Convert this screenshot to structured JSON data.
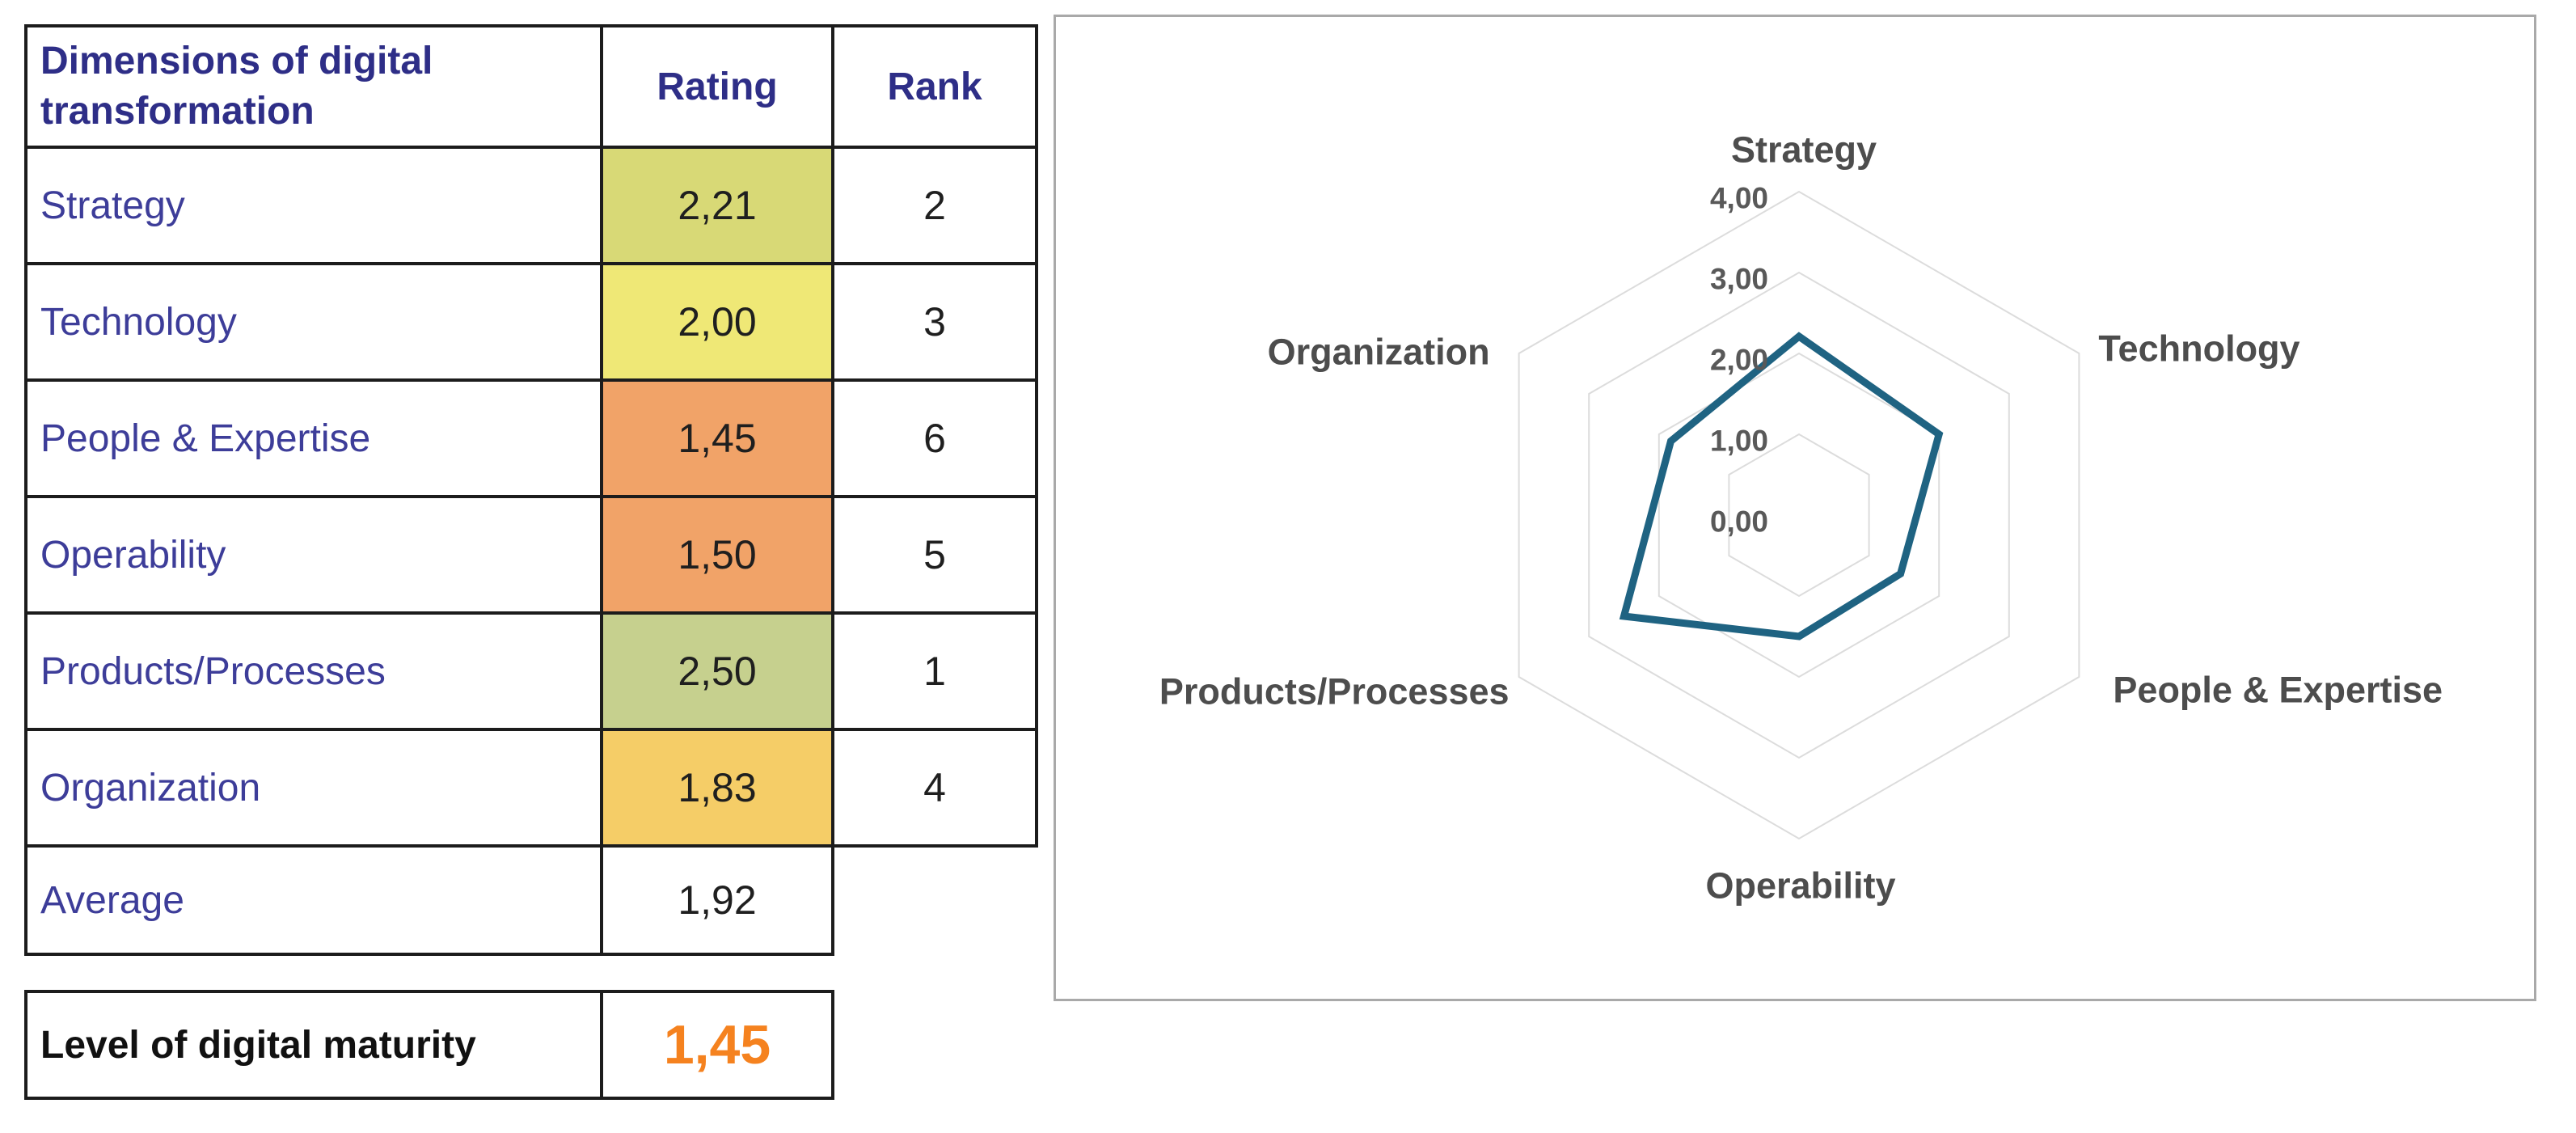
{
  "table": {
    "header": {
      "dimension": "Dimensions of digital transformation",
      "rating": "Rating",
      "rank": "Rank"
    },
    "rows": [
      {
        "label": "Strategy",
        "rating": "2,21",
        "rank": "2",
        "rating_bg": "#d8d976"
      },
      {
        "label": "Technology",
        "rating": "2,00",
        "rank": "3",
        "rating_bg": "#efe876"
      },
      {
        "label": "People & Expertise",
        "rating": "1,45",
        "rank": "6",
        "rating_bg": "#f1a368"
      },
      {
        "label": "Operability",
        "rating": "1,50",
        "rank": "5",
        "rating_bg": "#f1a368"
      },
      {
        "label": "Products/Processes",
        "rating": "2,50",
        "rank": "1",
        "rating_bg": "#c6d08e"
      },
      {
        "label": "Organization",
        "rating": "1,83",
        "rank": "4",
        "rating_bg": "#f5cd67"
      }
    ],
    "average": {
      "label": "Average",
      "rating": "1,92"
    }
  },
  "maturity": {
    "label": "Level of digital maturity",
    "value": "1,45",
    "value_color": "#f5821f"
  },
  "chart_data": {
    "type": "radar",
    "categories": [
      "Strategy",
      "Technology",
      "People & Expertise",
      "Operability",
      "Products/Processes",
      "Organization"
    ],
    "values": [
      2.21,
      2.0,
      1.45,
      1.5,
      2.5,
      1.83
    ],
    "series_name": "Rating",
    "rlim": [
      0,
      4
    ],
    "ring_values": [
      1,
      2,
      3,
      4
    ],
    "tick_labels": [
      "0,00",
      "1,00",
      "2,00",
      "3,00",
      "4,00"
    ],
    "grid": "hexagonal rings only, no radial spokes",
    "legend_position": "none",
    "line_color": "#1f6382",
    "grid_color": "#dcdcdc",
    "axis_label_color": "#4d4d4d",
    "tick_label_color": "#595959"
  }
}
